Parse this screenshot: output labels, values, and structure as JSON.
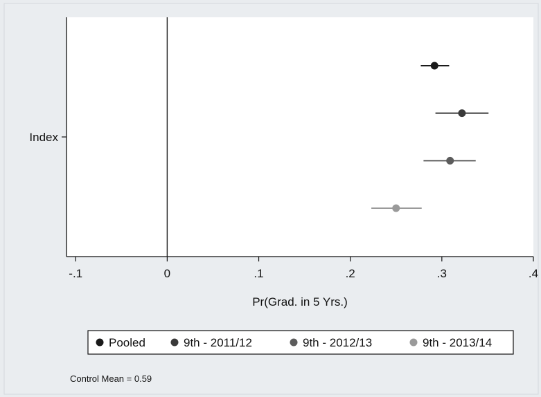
{
  "chart_data": {
    "type": "scatter",
    "subtype": "coefficient-plot",
    "xlabel": "Pr(Grad. in 5 Yrs.)",
    "ylabel": "",
    "xlim": [
      -0.11,
      0.4
    ],
    "x_ticks": [
      {
        "value": -0.1,
        "label": "-.1"
      },
      {
        "value": 0,
        "label": "0"
      },
      {
        "value": 0.1,
        "label": ".1"
      },
      {
        "value": 0.2,
        "label": ".2"
      },
      {
        "value": 0.3,
        "label": ".3"
      },
      {
        "value": 0.4,
        "label": ".4"
      }
    ],
    "y_categories": [
      "Index"
    ],
    "reference_line": {
      "x": 0
    },
    "grid": false,
    "legend_position": "bottom",
    "series": [
      {
        "name": "Pooled",
        "estimate": 0.292,
        "ci": [
          0.277,
          0.308
        ],
        "color": "#1a1a1a"
      },
      {
        "name": "9th - 2011/12",
        "estimate": 0.322,
        "ci": [
          0.293,
          0.351
        ],
        "color": "#3a3a3a"
      },
      {
        "name": "9th - 2012/13",
        "estimate": 0.309,
        "ci": [
          0.28,
          0.337
        ],
        "color": "#5c5c5c"
      },
      {
        "name": "9th - 2013/14",
        "estimate": 0.25,
        "ci": [
          0.223,
          0.278
        ],
        "color": "#9a9a9a"
      }
    ]
  },
  "note": "Control Mean = 0.59"
}
